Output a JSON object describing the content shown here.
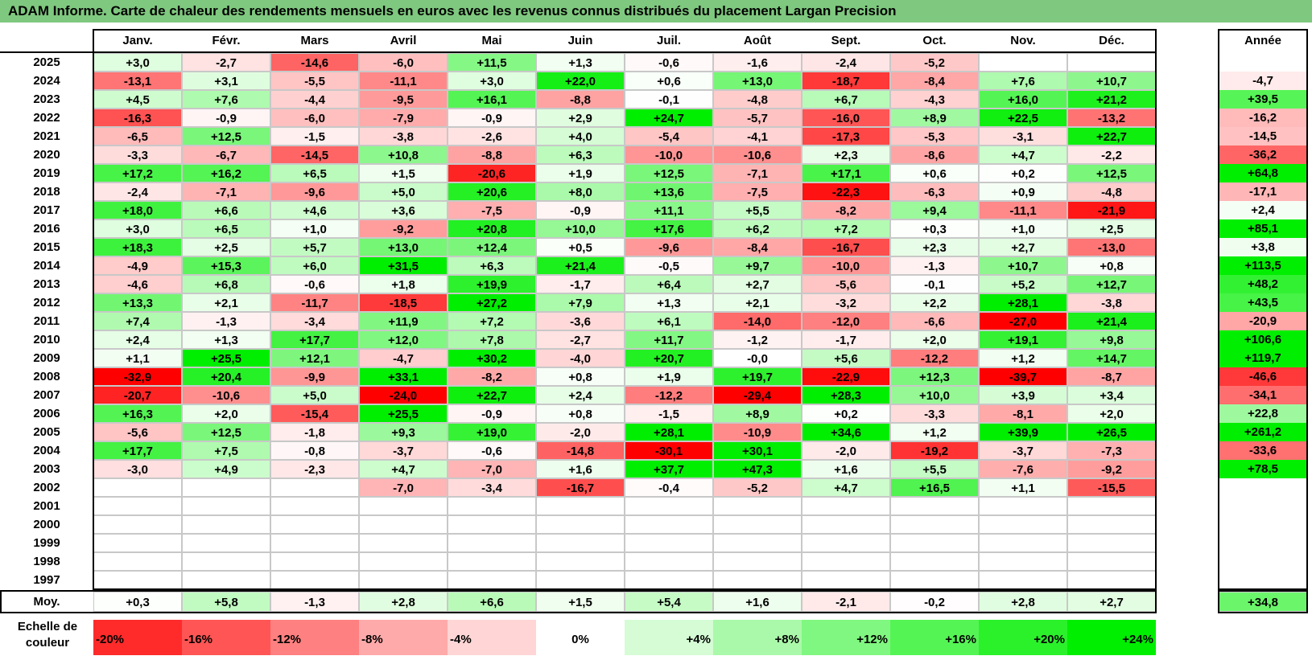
{
  "title": "ADAM Informe. Carte de chaleur des rendements mensuels en euros avec les revenus connus distribués du placement Largan Precision",
  "chart_data": {
    "type": "heatmap",
    "title": "ADAM Informe. Carte de chaleur des rendements mensuels en euros avec les revenus connus distribués du placement Largan Precision",
    "columns": [
      "Janv.",
      "Févr.",
      "Mars",
      "Avril",
      "Mai",
      "Juin",
      "Juil.",
      "Août",
      "Sept.",
      "Oct.",
      "Nov.",
      "Déc."
    ],
    "year_column_label": "Année",
    "rows": [
      {
        "year": "2025",
        "months": [
          "+3,0",
          "-2,7",
          "-14,6",
          "-6,0",
          "+11,5",
          "+1,3",
          "-0,6",
          "-1,6",
          "-2,4",
          "-5,2",
          "",
          ""
        ],
        "annual": ""
      },
      {
        "year": "2024",
        "months": [
          "-13,1",
          "+3,1",
          "-5,5",
          "-11,1",
          "+3,0",
          "+22,0",
          "+0,6",
          "+13,0",
          "-18,7",
          "-8,4",
          "+7,6",
          "+10,7"
        ],
        "annual": "-4,7"
      },
      {
        "year": "2023",
        "months": [
          "+4,5",
          "+7,6",
          "-4,4",
          "-9,5",
          "+16,1",
          "-8,8",
          "-0,1",
          "-4,8",
          "+6,7",
          "-4,3",
          "+16,0",
          "+21,2"
        ],
        "annual": "+39,5"
      },
      {
        "year": "2022",
        "months": [
          "-16,3",
          "-0,9",
          "-6,0",
          "-7,9",
          "-0,9",
          "+2,9",
          "+24,7",
          "-5,7",
          "-16,0",
          "+8,9",
          "+22,5",
          "-13,2"
        ],
        "annual": "-16,2"
      },
      {
        "year": "2021",
        "months": [
          "-6,5",
          "+12,5",
          "-1,5",
          "-3,8",
          "-2,6",
          "+4,0",
          "-5,4",
          "-4,1",
          "-17,3",
          "-5,3",
          "-3,1",
          "+22,7"
        ],
        "annual": "-14,5"
      },
      {
        "year": "2020",
        "months": [
          "-3,3",
          "-6,7",
          "-14,5",
          "+10,8",
          "-8,8",
          "+6,3",
          "-10,0",
          "-10,6",
          "+2,3",
          "-8,6",
          "+4,7",
          "-2,2"
        ],
        "annual": "-36,2"
      },
      {
        "year": "2019",
        "months": [
          "+17,2",
          "+16,2",
          "+6,5",
          "+1,5",
          "-20,6",
          "+1,9",
          "+12,5",
          "-7,1",
          "+17,1",
          "+0,6",
          "+0,2",
          "+12,5"
        ],
        "annual": "+64,8"
      },
      {
        "year": "2018",
        "months": [
          "-2,4",
          "-7,1",
          "-9,6",
          "+5,0",
          "+20,6",
          "+8,0",
          "+13,6",
          "-7,5",
          "-22,3",
          "-6,3",
          "+0,9",
          "-4,8"
        ],
        "annual": "-17,1"
      },
      {
        "year": "2017",
        "months": [
          "+18,0",
          "+6,6",
          "+4,6",
          "+3,6",
          "-7,5",
          "-0,9",
          "+11,1",
          "+5,5",
          "-8,2",
          "+9,4",
          "-11,1",
          "-21,9"
        ],
        "annual": "+2,4"
      },
      {
        "year": "2016",
        "months": [
          "+3,0",
          "+6,5",
          "+1,0",
          "-9,2",
          "+20,8",
          "+10,0",
          "+17,6",
          "+6,2",
          "+7,2",
          "+0,3",
          "+1,0",
          "+2,5"
        ],
        "annual": "+85,1"
      },
      {
        "year": "2015",
        "months": [
          "+18,3",
          "+2,5",
          "+5,7",
          "+13,0",
          "+12,4",
          "+0,5",
          "-9,6",
          "-8,4",
          "-16,7",
          "+2,3",
          "+2,7",
          "-13,0"
        ],
        "annual": "+3,8"
      },
      {
        "year": "2014",
        "months": [
          "-4,9",
          "+15,3",
          "+6,0",
          "+31,5",
          "+6,3",
          "+21,4",
          "-0,5",
          "+9,7",
          "-10,0",
          "-1,3",
          "+10,7",
          "+0,8"
        ],
        "annual": "+113,5"
      },
      {
        "year": "2013",
        "months": [
          "-4,6",
          "+6,8",
          "-0,6",
          "+1,8",
          "+19,9",
          "-1,7",
          "+6,4",
          "+2,7",
          "-5,6",
          "-0,1",
          "+5,2",
          "+12,7"
        ],
        "annual": "+48,2"
      },
      {
        "year": "2012",
        "months": [
          "+13,3",
          "+2,1",
          "-11,7",
          "-18,5",
          "+27,2",
          "+7,9",
          "+1,3",
          "+2,1",
          "-3,2",
          "+2,2",
          "+28,1",
          "-3,8"
        ],
        "annual": "+43,5"
      },
      {
        "year": "2011",
        "months": [
          "+7,4",
          "-1,3",
          "-3,4",
          "+11,9",
          "+7,2",
          "-3,6",
          "+6,1",
          "-14,0",
          "-12,0",
          "-6,6",
          "-27,0",
          "+21,4"
        ],
        "annual": "-20,9"
      },
      {
        "year": "2010",
        "months": [
          "+2,4",
          "+1,3",
          "+17,7",
          "+12,0",
          "+7,8",
          "-2,7",
          "+11,7",
          "-1,2",
          "-1,7",
          "+2,0",
          "+19,1",
          "+9,8"
        ],
        "annual": "+106,6"
      },
      {
        "year": "2009",
        "months": [
          "+1,1",
          "+25,5",
          "+12,1",
          "-4,7",
          "+30,2",
          "-4,0",
          "+20,7",
          "-0,0",
          "+5,6",
          "-12,2",
          "+1,2",
          "+14,7"
        ],
        "annual": "+119,7"
      },
      {
        "year": "2008",
        "months": [
          "-32,9",
          "+20,4",
          "-9,9",
          "+33,1",
          "-8,2",
          "+0,8",
          "+1,9",
          "+19,7",
          "-22,9",
          "+12,3",
          "-39,7",
          "-8,7"
        ],
        "annual": "-46,6"
      },
      {
        "year": "2007",
        "months": [
          "-20,7",
          "-10,6",
          "+5,0",
          "-24,0",
          "+22,7",
          "+2,4",
          "-12,2",
          "-29,4",
          "+28,3",
          "+10,0",
          "+3,9",
          "+3,4"
        ],
        "annual": "-34,1"
      },
      {
        "year": "2006",
        "months": [
          "+16,3",
          "+2,0",
          "-15,4",
          "+25,5",
          "-0,9",
          "+0,8",
          "-1,5",
          "+8,9",
          "+0,2",
          "-3,3",
          "-8,1",
          "+2,0"
        ],
        "annual": "+22,8"
      },
      {
        "year": "2005",
        "months": [
          "-5,6",
          "+12,5",
          "-1,8",
          "+9,3",
          "+19,0",
          "-2,0",
          "+28,1",
          "-10,9",
          "+34,6",
          "+1,2",
          "+39,9",
          "+26,5"
        ],
        "annual": "+261,2"
      },
      {
        "year": "2004",
        "months": [
          "+17,7",
          "+7,5",
          "-0,8",
          "-3,7",
          "-0,6",
          "-14,8",
          "-30,1",
          "+30,1",
          "-2,0",
          "-19,2",
          "-3,7",
          "-7,3"
        ],
        "annual": "-33,6"
      },
      {
        "year": "2003",
        "months": [
          "-3,0",
          "+4,9",
          "-2,3",
          "+4,7",
          "-7,0",
          "+1,6",
          "+37,7",
          "+47,3",
          "+1,6",
          "+5,5",
          "-7,6",
          "-9,2"
        ],
        "annual": "+78,5"
      },
      {
        "year": "2002",
        "months": [
          "",
          "",
          "",
          "-7,0",
          "-3,4",
          "-16,7",
          "-0,4",
          "-5,2",
          "+4,7",
          "+16,5",
          "+1,1",
          "-15,5"
        ],
        "annual": ""
      },
      {
        "year": "2001",
        "months": [
          "",
          "",
          "",
          "",
          "",
          "",
          "",
          "",
          "",
          "",
          "",
          ""
        ],
        "annual": ""
      },
      {
        "year": "2000",
        "months": [
          "",
          "",
          "",
          "",
          "",
          "",
          "",
          "",
          "",
          "",
          "",
          ""
        ],
        "annual": ""
      },
      {
        "year": "1999",
        "months": [
          "",
          "",
          "",
          "",
          "",
          "",
          "",
          "",
          "",
          "",
          "",
          ""
        ],
        "annual": ""
      },
      {
        "year": "1998",
        "months": [
          "",
          "",
          "",
          "",
          "",
          "",
          "",
          "",
          "",
          "",
          "",
          ""
        ],
        "annual": ""
      },
      {
        "year": "1997",
        "months": [
          "",
          "",
          "",
          "",
          "",
          "",
          "",
          "",
          "",
          "",
          "",
          ""
        ],
        "annual": ""
      }
    ],
    "average": {
      "label": "Moy.",
      "months": [
        "+0,3",
        "+5,8",
        "-1,3",
        "+2,8",
        "+6,6",
        "+1,5",
        "+5,4",
        "+1,6",
        "-2,1",
        "-0,2",
        "+2,8",
        "+2,7"
      ],
      "annual": "+34,8"
    },
    "legend": {
      "title": "Echelle de couleur",
      "items": [
        "-20%",
        "-16%",
        "-12%",
        "-8%",
        "-4%",
        "0%",
        "+4%",
        "+8%",
        "+12%",
        "+16%",
        "+20%",
        "+24%"
      ]
    },
    "colors": {
      "negative_max": "#ff0000",
      "neutral": "#ffffff",
      "positive_max": "#00ee00",
      "title_bar": "#7fc87f"
    }
  }
}
